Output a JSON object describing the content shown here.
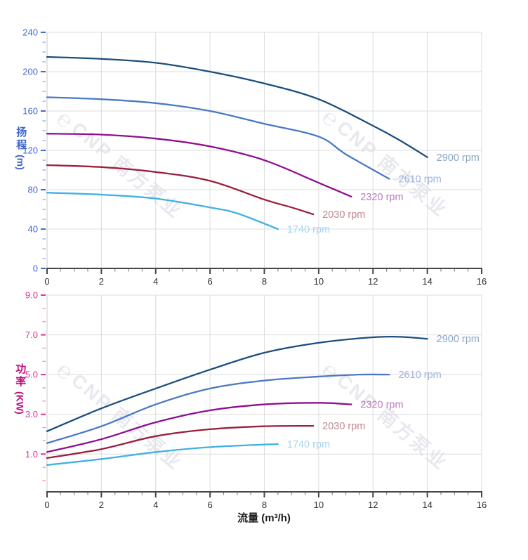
{
  "watermark": {
    "text": "CNP 南方泵业",
    "logo_letter": "℮"
  },
  "x_axis": {
    "title": "流量 (m³/h)"
  },
  "head_axis": {
    "title_text": "扬程",
    "title_unit": "(m)"
  },
  "power_axis": {
    "title_text": "功率",
    "title_unit": "(KW)"
  },
  "chart_data": [
    {
      "id": "head",
      "type": "line",
      "title": "",
      "xlabel": "流量 (m³/h)",
      "ylabel": "扬程 (m)",
      "xlim": [
        0,
        16
      ],
      "ylim": [
        0,
        240
      ],
      "x_ticks": [
        0,
        2,
        4,
        6,
        8,
        10,
        12,
        14,
        16
      ],
      "x_minor_step": 0.5,
      "y_ticks": [
        0,
        40,
        80,
        120,
        160,
        200,
        240
      ],
      "y_tick_labels": [
        "0",
        "40",
        "80",
        "120",
        "160",
        "200",
        "240"
      ],
      "y_minor_step": 10,
      "grid": true,
      "legend_position": "inline-end-labels",
      "axis_color": "#4468d1",
      "series": [
        {
          "name": "2900 rpm",
          "color": "#1b4e7e",
          "label_color": "#8aa5c5",
          "points": [
            [
              0,
              215
            ],
            [
              2,
              213
            ],
            [
              4,
              209
            ],
            [
              6,
              200
            ],
            [
              8,
              188
            ],
            [
              10,
              172
            ],
            [
              12,
              145
            ],
            [
              13,
              130
            ],
            [
              14,
              113
            ]
          ]
        },
        {
          "name": "2610 rpm",
          "color": "#4a78c5",
          "label_color": "#9bb0dd",
          "points": [
            [
              0,
              174
            ],
            [
              2,
              172
            ],
            [
              4,
              168
            ],
            [
              6,
              160
            ],
            [
              8,
              147
            ],
            [
              10,
              134
            ],
            [
              11,
              116
            ],
            [
              12.6,
              91
            ]
          ]
        },
        {
          "name": "2320 rpm",
          "color": "#8e0f8e",
          "label_color": "#bd78bd",
          "points": [
            [
              0,
              137
            ],
            [
              2,
              136
            ],
            [
              4,
              132
            ],
            [
              6,
              124
            ],
            [
              8,
              110
            ],
            [
              10,
              87
            ],
            [
              11.2,
              73
            ]
          ]
        },
        {
          "name": "2030 rpm",
          "color": "#9c1f3d",
          "label_color": "#c38791",
          "points": [
            [
              0,
              105
            ],
            [
              2,
              103
            ],
            [
              4,
              98
            ],
            [
              6,
              89
            ],
            [
              8,
              70
            ],
            [
              9,
              62
            ],
            [
              9.8,
              55
            ]
          ]
        },
        {
          "name": "1740 rpm",
          "color": "#41b0e2",
          "label_color": "#a3d6ef",
          "points": [
            [
              0,
              77
            ],
            [
              2,
              75
            ],
            [
              4,
              71
            ],
            [
              6,
              62
            ],
            [
              7,
              56
            ],
            [
              8.5,
              40
            ]
          ]
        }
      ]
    },
    {
      "id": "power",
      "type": "line",
      "title": "",
      "xlabel": "流量 (m³/h)",
      "ylabel": "功率 (KW)",
      "xlim": [
        0,
        16
      ],
      "ylim": [
        -0.9,
        9
      ],
      "x_ticks": [
        0,
        2,
        4,
        6,
        8,
        10,
        12,
        14,
        16
      ],
      "x_minor_step": 0.5,
      "y_ticks": [
        1,
        3,
        5,
        7,
        9
      ],
      "y_tick_labels": [
        "1.0",
        "3.0",
        "5.0",
        "7.0",
        "9.0"
      ],
      "y_minor_step": 0.6667,
      "grid": true,
      "legend_position": "inline-end-labels",
      "axis_color": "#d9339a",
      "series": [
        {
          "name": "2900 rpm",
          "color": "#1b4e7e",
          "label_color": "#8aa5c5",
          "points": [
            [
              0,
              2.15
            ],
            [
              2,
              3.3
            ],
            [
              4,
              4.3
            ],
            [
              6,
              5.25
            ],
            [
              8,
              6.1
            ],
            [
              10,
              6.6
            ],
            [
              12,
              6.88
            ],
            [
              13,
              6.9
            ],
            [
              14,
              6.8
            ]
          ]
        },
        {
          "name": "2610 rpm",
          "color": "#4a78c5",
          "label_color": "#9bb0dd",
          "points": [
            [
              0,
              1.55
            ],
            [
              2,
              2.4
            ],
            [
              4,
              3.5
            ],
            [
              6,
              4.3
            ],
            [
              8,
              4.7
            ],
            [
              10,
              4.9
            ],
            [
              11.5,
              5.0
            ],
            [
              12.6,
              5.0
            ]
          ]
        },
        {
          "name": "2320 rpm",
          "color": "#8e0f8e",
          "label_color": "#bd78bd",
          "points": [
            [
              0,
              1.1
            ],
            [
              2,
              1.75
            ],
            [
              4,
              2.6
            ],
            [
              6,
              3.2
            ],
            [
              8,
              3.5
            ],
            [
              10,
              3.58
            ],
            [
              11.2,
              3.5
            ]
          ]
        },
        {
          "name": "2030 rpm",
          "color": "#9c1f3d",
          "label_color": "#c38791",
          "points": [
            [
              0,
              0.8
            ],
            [
              2,
              1.25
            ],
            [
              4,
              1.9
            ],
            [
              6,
              2.25
            ],
            [
              8,
              2.4
            ],
            [
              9.8,
              2.42
            ]
          ]
        },
        {
          "name": "1740 rpm",
          "color": "#41b0e2",
          "label_color": "#a3d6ef",
          "points": [
            [
              0,
              0.45
            ],
            [
              2,
              0.75
            ],
            [
              4,
              1.1
            ],
            [
              6,
              1.35
            ],
            [
              8,
              1.48
            ],
            [
              8.5,
              1.5
            ]
          ]
        }
      ]
    }
  ]
}
